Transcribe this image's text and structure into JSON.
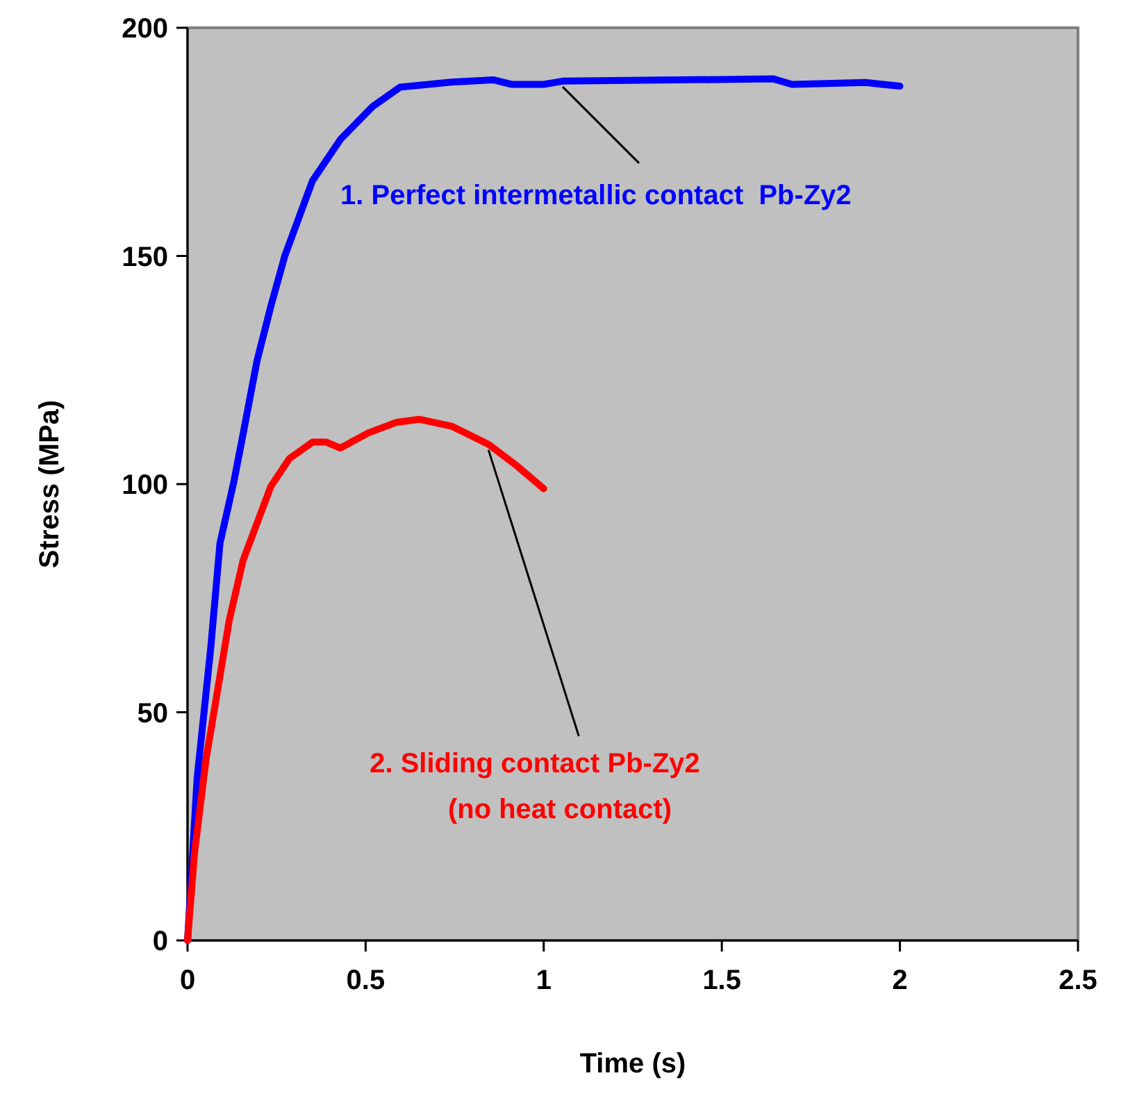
{
  "chart_data": {
    "type": "line",
    "xlabel": "Time (s)",
    "ylabel": "Stress (MPa)",
    "xlim": [
      0,
      2.5
    ],
    "ylim": [
      0,
      200
    ],
    "xticks": [
      0,
      0.5,
      1,
      1.5,
      2,
      2.5
    ],
    "yticks": [
      0,
      50,
      100,
      150,
      200
    ],
    "grid": false,
    "series": [
      {
        "color": "#0000ff",
        "x": [
          0,
          0.027,
          0.065,
          0.091,
          0.13,
          0.156,
          0.195,
          0.234,
          0.273,
          0.351,
          0.43,
          0.519,
          0.597,
          0.74,
          0.858,
          0.909,
          1.0,
          1.053,
          1.645,
          1.697,
          1.903,
          2.0
        ],
        "values": [
          0,
          35.6,
          64,
          87,
          100.5,
          111,
          127,
          139,
          150,
          166.5,
          175.6,
          182.7,
          187,
          188.1,
          188.6,
          187.6,
          187.6,
          188.3,
          188.8,
          187.6,
          188,
          187.2
        ]
      },
      {
        "color": "#ff0000",
        "x": [
          0,
          0.02,
          0.052,
          0.078,
          0.117,
          0.156,
          0.195,
          0.234,
          0.286,
          0.351,
          0.39,
          0.429,
          0.507,
          0.585,
          0.65,
          0.741,
          0.845,
          0.923,
          1.0
        ],
        "values": [
          0,
          19.4,
          39.7,
          51.8,
          70.1,
          83.3,
          91.4,
          99.5,
          105.6,
          109.2,
          109.2,
          107.9,
          111.2,
          113.5,
          114.2,
          112.7,
          108.7,
          104.1,
          99
        ]
      }
    ],
    "annotations": [
      {
        "text": "1. Perfect intermetallic contact  Pb-Zy2",
        "x": 1.053,
        "y": 188.3
      },
      {
        "text": "2. Sliding contact Pb-Zy2\n(no heat contact)",
        "x": 0.845,
        "y": 108.7
      }
    ]
  }
}
